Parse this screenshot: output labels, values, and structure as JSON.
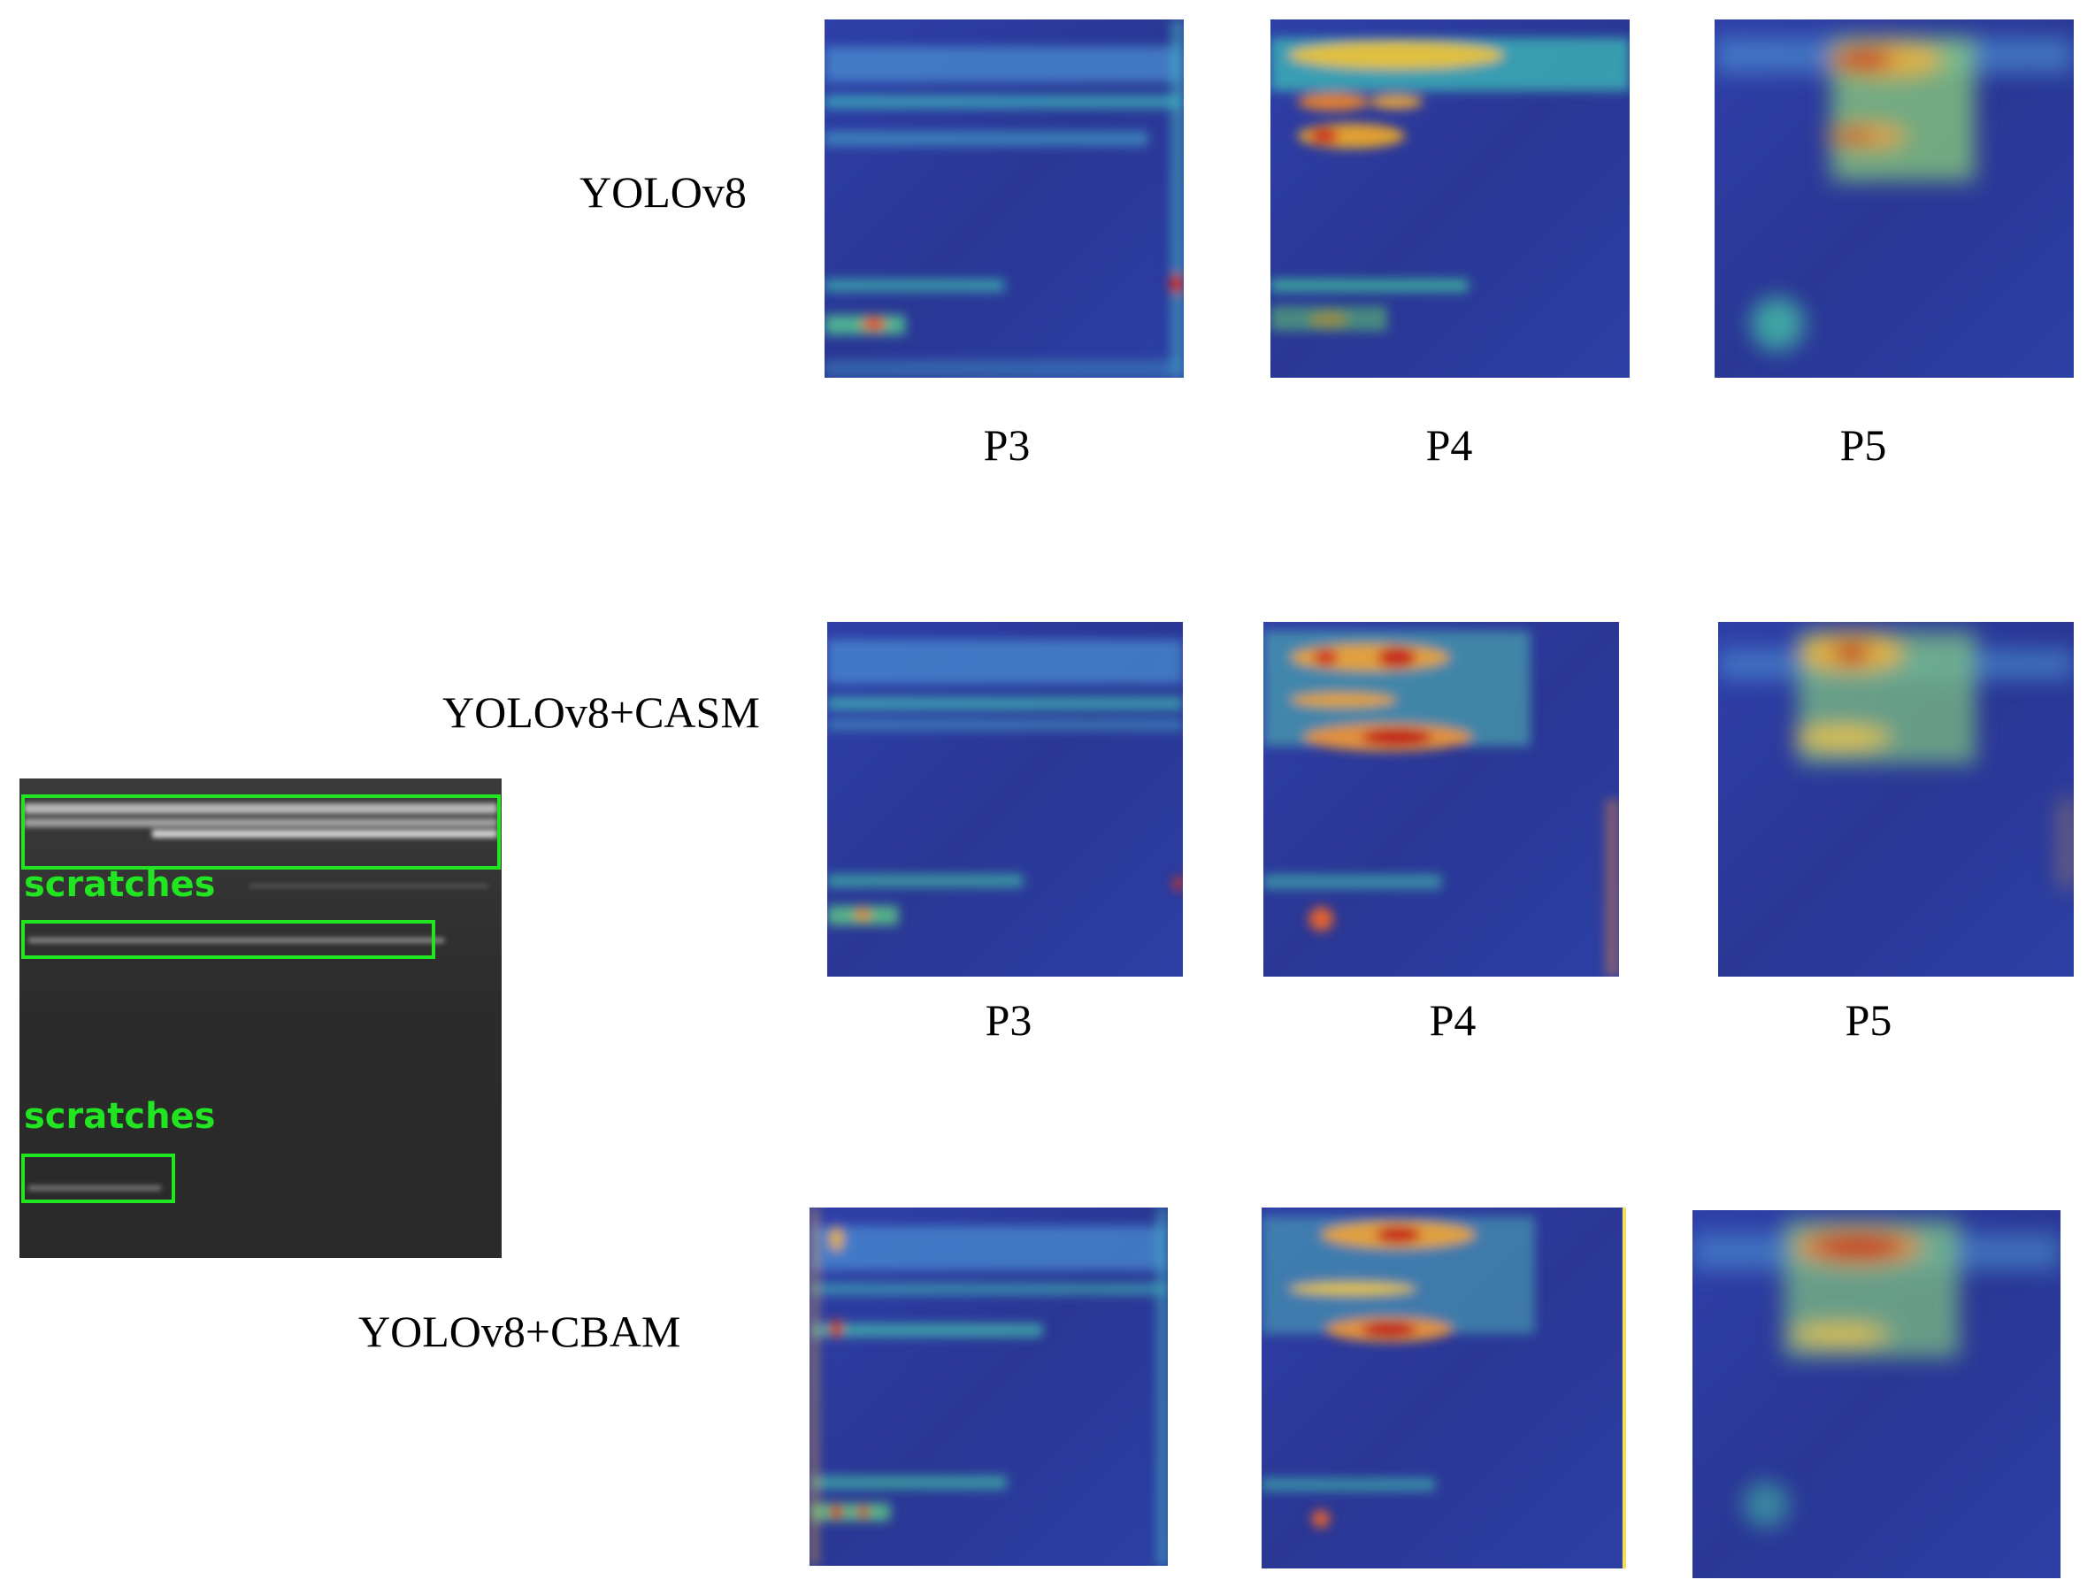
{
  "rows": [
    {
      "label": "YOLOv8",
      "panels": [
        "P3",
        "P4",
        "P5"
      ]
    },
    {
      "label": "YOLOv8+CASM",
      "panels": [
        "P3",
        "P4",
        "P5"
      ]
    },
    {
      "label": "YOLOv8+CBAM",
      "panels": []
    }
  ],
  "source_image": {
    "detections": [
      {
        "label": "scratches"
      },
      {
        "label": ""
      },
      {
        "label": "scratches"
      }
    ]
  },
  "colors": {
    "heatmap_low": "#2a3a9a",
    "heatmap_mid": "#35c6c0",
    "heatmap_high": "#c81e1e",
    "box": "#22e522"
  }
}
